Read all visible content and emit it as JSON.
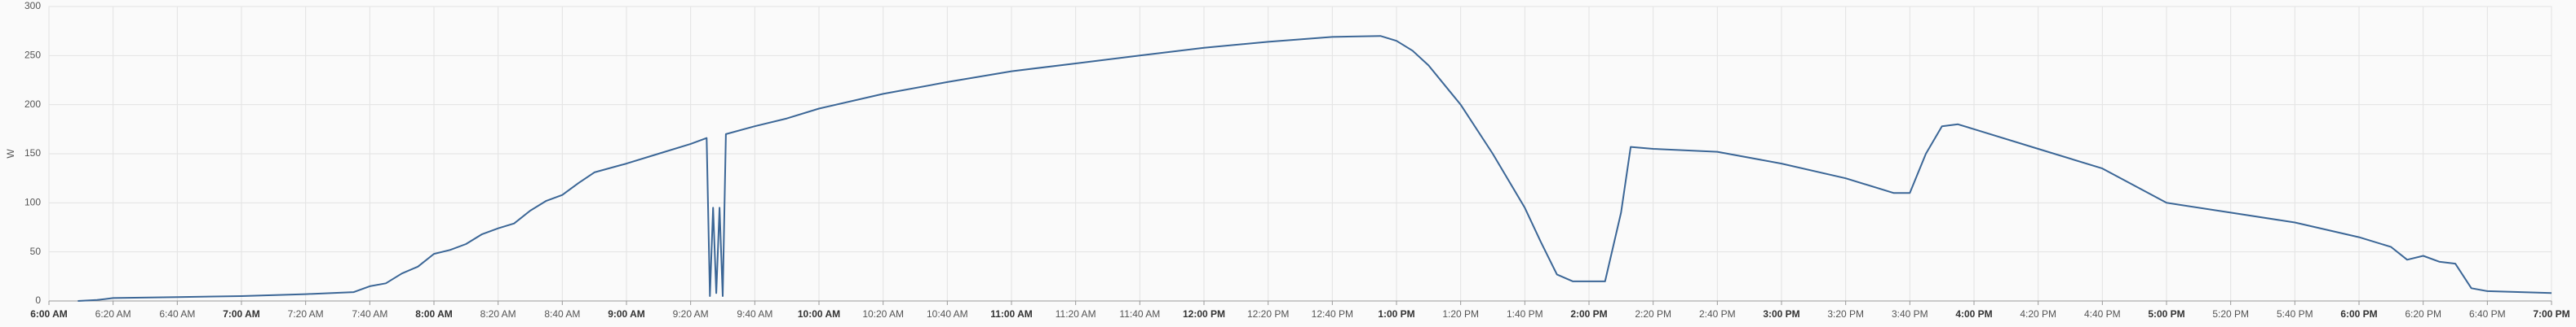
{
  "chart_data": {
    "type": "line",
    "y_label": "W",
    "color": "#3b6696",
    "grid": true,
    "ylim": [
      0,
      300
    ],
    "yticks": [
      0,
      50,
      100,
      150,
      200,
      250,
      300
    ],
    "xlim": [
      "6:00 AM",
      "7:00 PM"
    ],
    "xticks": [
      "6:00 AM",
      "6:20 AM",
      "6:40 AM",
      "7:00 AM",
      "7:20 AM",
      "7:40 AM",
      "8:00 AM",
      "8:20 AM",
      "8:40 AM",
      "9:00 AM",
      "9:20 AM",
      "9:40 AM",
      "10:00 AM",
      "10:20 AM",
      "10:40 AM",
      "11:00 AM",
      "11:20 AM",
      "11:40 AM",
      "12:00 PM",
      "12:20 PM",
      "12:40 PM",
      "1:00 PM",
      "1:20 PM",
      "1:40 PM",
      "2:00 PM",
      "2:20 PM",
      "2:40 PM",
      "3:00 PM",
      "3:20 PM",
      "3:40 PM",
      "4:00 PM",
      "4:20 PM",
      "4:40 PM",
      "5:00 PM",
      "5:20 PM",
      "5:40 PM",
      "6:00 PM",
      "6:20 PM",
      "6:40 PM",
      "7:00 PM"
    ],
    "x": [
      "6:09 AM",
      "6:15 AM",
      "6:20 AM",
      "6:40 AM",
      "7:00 AM",
      "7:20 AM",
      "7:35 AM",
      "7:40 AM",
      "7:45 AM",
      "7:50 AM",
      "7:55 AM",
      "8:00 AM",
      "8:05 AM",
      "8:10 AM",
      "8:15 AM",
      "8:20 AM",
      "8:25 AM",
      "8:30 AM",
      "8:35 AM",
      "8:40 AM",
      "8:45 AM",
      "8:50 AM",
      "9:00 AM",
      "9:10 AM",
      "9:20 AM",
      "9:25 AM",
      "9:26 AM",
      "9:27 AM",
      "9:28 AM",
      "9:29 AM",
      "9:30 AM",
      "9:31 AM",
      "9:40 AM",
      "9:50 AM",
      "10:00 AM",
      "10:20 AM",
      "10:40 AM",
      "11:00 AM",
      "11:20 AM",
      "11:40 AM",
      "12:00 PM",
      "12:20 PM",
      "12:40 PM",
      "12:55 PM",
      "1:00 PM",
      "1:05 PM",
      "1:10 PM",
      "1:20 PM",
      "1:30 PM",
      "1:40 PM",
      "1:45 PM",
      "1:50 PM",
      "1:55 PM",
      "2:00 PM",
      "2:05 PM",
      "2:10 PM",
      "2:13 PM",
      "2:20 PM",
      "2:40 PM",
      "3:00 PM",
      "3:20 PM",
      "3:35 PM",
      "3:40 PM",
      "3:45 PM",
      "3:50 PM",
      "3:55 PM",
      "4:00 PM",
      "4:20 PM",
      "4:40 PM",
      "5:00 PM",
      "5:20 PM",
      "5:40 PM",
      "6:00 PM",
      "6:10 PM",
      "6:15 PM",
      "6:20 PM",
      "6:25 PM",
      "6:30 PM",
      "6:35 PM",
      "6:40 PM",
      "7:00 PM"
    ],
    "values": [
      0,
      1,
      3,
      4,
      5,
      7,
      9,
      15,
      18,
      28,
      35,
      48,
      52,
      58,
      68,
      74,
      79,
      92,
      102,
      108,
      120,
      131,
      140,
      150,
      160,
      166,
      5,
      95,
      8,
      95,
      5,
      170,
      178,
      186,
      196,
      211,
      223,
      234,
      242,
      250,
      258,
      264,
      269,
      270,
      265,
      255,
      240,
      200,
      150,
      95,
      60,
      27,
      20,
      20,
      20,
      90,
      157,
      155,
      152,
      140,
      125,
      110,
      110,
      150,
      178,
      180,
      175,
      155,
      135,
      100,
      90,
      80,
      65,
      55,
      42,
      46,
      40,
      38,
      13,
      10,
      8
    ]
  }
}
